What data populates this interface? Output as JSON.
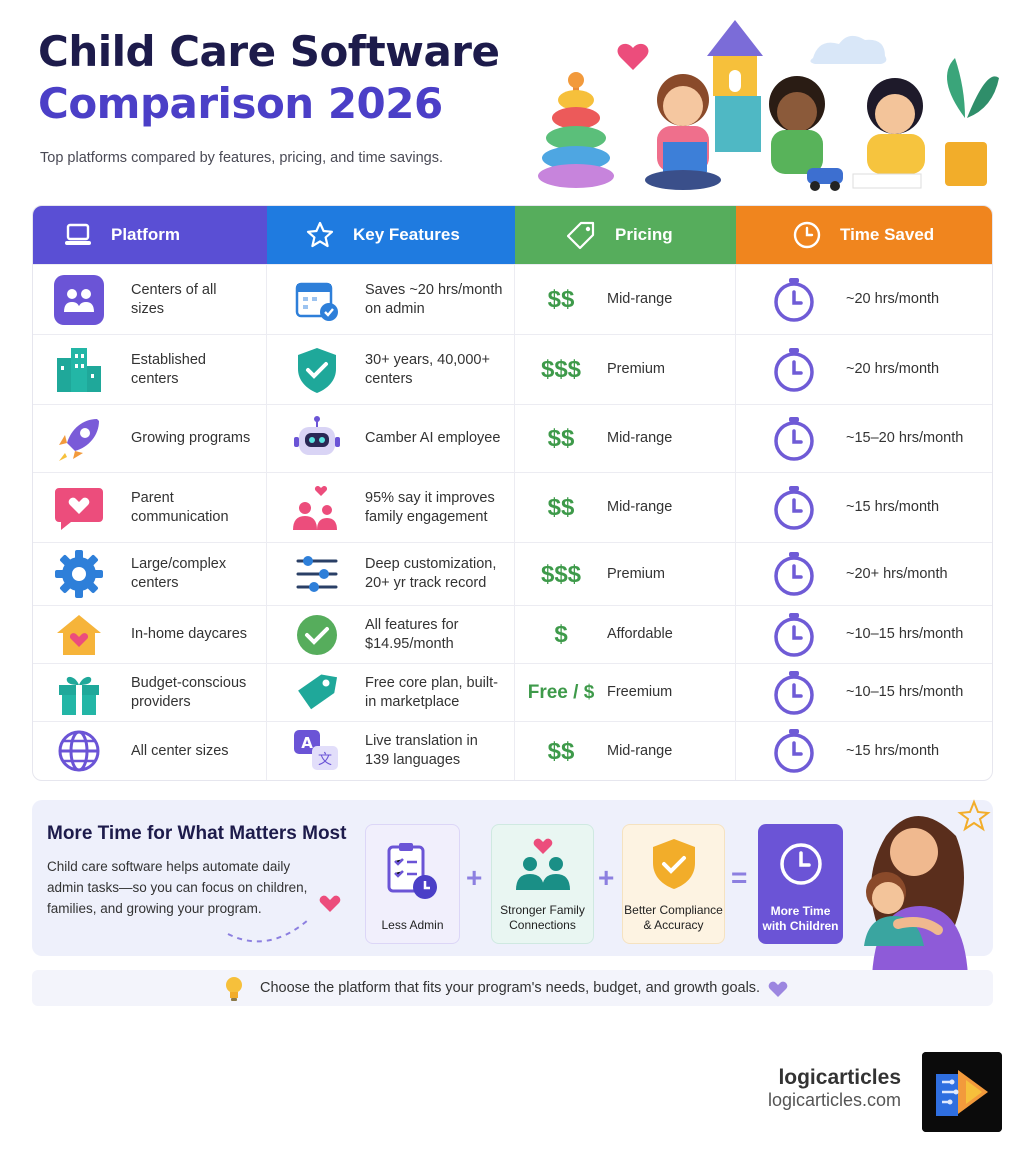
{
  "header": {
    "title_line1": "Child Care Software",
    "title_line2": "Comparison 2026",
    "subtitle": "Top platforms compared by features, pricing, and time savings."
  },
  "table": {
    "columns": {
      "platform": "Platform",
      "features": "Key Features",
      "pricing": "Pricing",
      "time": "Time Saved"
    },
    "rows": [
      {
        "icon": "people-icon",
        "platform": "Centers of all sizes",
        "feature_icon": "calendar-check-icon",
        "feature": "Saves ~20 hrs/month on admin",
        "price_symbol": "$$",
        "price_tier": "Mid-range",
        "time_saved": "~20 hrs/month"
      },
      {
        "icon": "buildings-icon",
        "platform": "Established centers",
        "feature_icon": "shield-check-icon",
        "feature": "30+ years, 40,000+ centers",
        "price_symbol": "$$$",
        "price_tier": "Premium",
        "time_saved": "~20 hrs/month"
      },
      {
        "icon": "rocket-icon",
        "platform": "Growing programs",
        "feature_icon": "robot-icon",
        "feature": "Camber AI employee",
        "price_symbol": "$$",
        "price_tier": "Mid-range",
        "time_saved": "~15–20 hrs/month"
      },
      {
        "icon": "heart-chat-icon",
        "platform": "Parent communication",
        "feature_icon": "family-heart-icon",
        "feature": "95% say it improves family engagement",
        "price_symbol": "$$",
        "price_tier": "Mid-range",
        "time_saved": "~15 hrs/month"
      },
      {
        "icon": "gear-icon",
        "platform": "Large/complex centers",
        "feature_icon": "sliders-icon",
        "feature": "Deep customization, 20+ yr track record",
        "price_symbol": "$$$",
        "price_tier": "Premium",
        "time_saved": "~20+ hrs/month"
      },
      {
        "icon": "house-heart-icon",
        "platform": "In-home daycares",
        "feature_icon": "check-circle-icon",
        "feature": "All features for $14.95/month",
        "price_symbol": "$",
        "price_tier": "Affordable",
        "time_saved": "~10–15 hrs/month"
      },
      {
        "icon": "gift-icon",
        "platform": "Budget-conscious providers",
        "feature_icon": "tag-icon",
        "feature": "Free core plan, built-in marketplace",
        "price_symbol": "Free / $",
        "price_tier": "Freemium",
        "time_saved": "~10–15 hrs/month"
      },
      {
        "icon": "globe-icon",
        "platform": "All center sizes",
        "feature_icon": "translate-icon",
        "feature": "Live translation in 139 languages",
        "price_symbol": "$$",
        "price_tier": "Mid-range",
        "time_saved": "~15 hrs/month"
      }
    ]
  },
  "benefits": {
    "title": "More Time for What Matters Most",
    "description": "Child care software helps automate daily admin tasks—so you can focus on children, families, and growing your program.",
    "cards": {
      "admin": "Less Admin",
      "family": "Stronger Family Connections",
      "compliance": "Better Compliance & Accuracy",
      "result": "More Time with Children"
    },
    "operators": {
      "plus": "+",
      "equals": "="
    }
  },
  "tip": {
    "icon": "lightbulb-icon",
    "text": "Choose the platform that fits your program's needs, budget, and growth goals."
  },
  "footer": {
    "brand": "logicarticles",
    "url": "logicarticles.com"
  },
  "colors": {
    "purple": "#5a4fd4",
    "blue": "#1f7be0",
    "green": "#56ad5c",
    "orange": "#f0851e",
    "navy": "#1d1b4b"
  }
}
